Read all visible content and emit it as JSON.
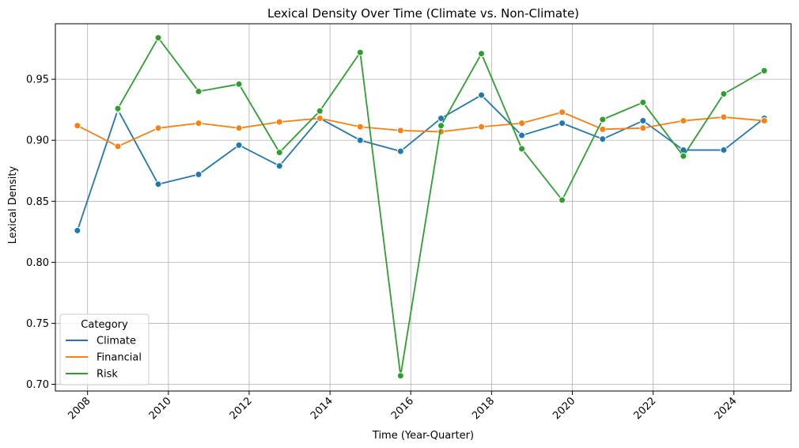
{
  "chart_data": {
    "type": "line",
    "title": "Lexical Density Over Time (Climate vs. Non-Climate)",
    "xlabel": "Time (Year-Quarter)",
    "ylabel": "Lexical Density",
    "xlim": [
      "2007-03-16",
      "2025-06-01"
    ],
    "ylim": [
      0.6945,
      0.9955
    ],
    "x_ticks": [
      "2008",
      "2010",
      "2012",
      "2014",
      "2016",
      "2018",
      "2020",
      "2022",
      "2024"
    ],
    "y_ticks": [
      "0.70",
      "0.75",
      "0.80",
      "0.85",
      "0.90",
      "0.95"
    ],
    "grid": true,
    "legend": {
      "title": "Category",
      "position": "lower-left"
    },
    "x": [
      "2007-10-01",
      "2008-10-01",
      "2009-10-01",
      "2010-10-01",
      "2011-10-01",
      "2012-10-01",
      "2013-10-01",
      "2014-10-01",
      "2015-10-01",
      "2016-10-01",
      "2017-10-01",
      "2018-10-01",
      "2019-10-01",
      "2020-10-01",
      "2021-10-01",
      "2022-10-01",
      "2023-10-01",
      "2024-10-01"
    ],
    "series": [
      {
        "name": "Climate",
        "color": "#1f77b4",
        "values": [
          0.826,
          0.925,
          0.864,
          0.872,
          0.896,
          0.879,
          0.918,
          0.9,
          0.891,
          0.918,
          0.937,
          0.904,
          0.914,
          0.901,
          0.916,
          0.892,
          0.892,
          0.918
        ]
      },
      {
        "name": "Financial",
        "color": "#ff7f0e",
        "values": [
          0.912,
          0.895,
          0.91,
          0.914,
          0.91,
          0.915,
          0.918,
          0.911,
          0.908,
          0.907,
          0.911,
          0.914,
          0.923,
          0.909,
          0.91,
          0.916,
          0.919,
          0.916
        ]
      },
      {
        "name": "Risk",
        "color": "#2ca02c",
        "values": [
          null,
          0.926,
          0.984,
          0.94,
          0.946,
          0.89,
          0.924,
          0.972,
          0.707,
          0.912,
          0.971,
          0.893,
          0.851,
          0.917,
          0.931,
          0.887,
          0.938,
          0.957
        ]
      }
    ]
  }
}
